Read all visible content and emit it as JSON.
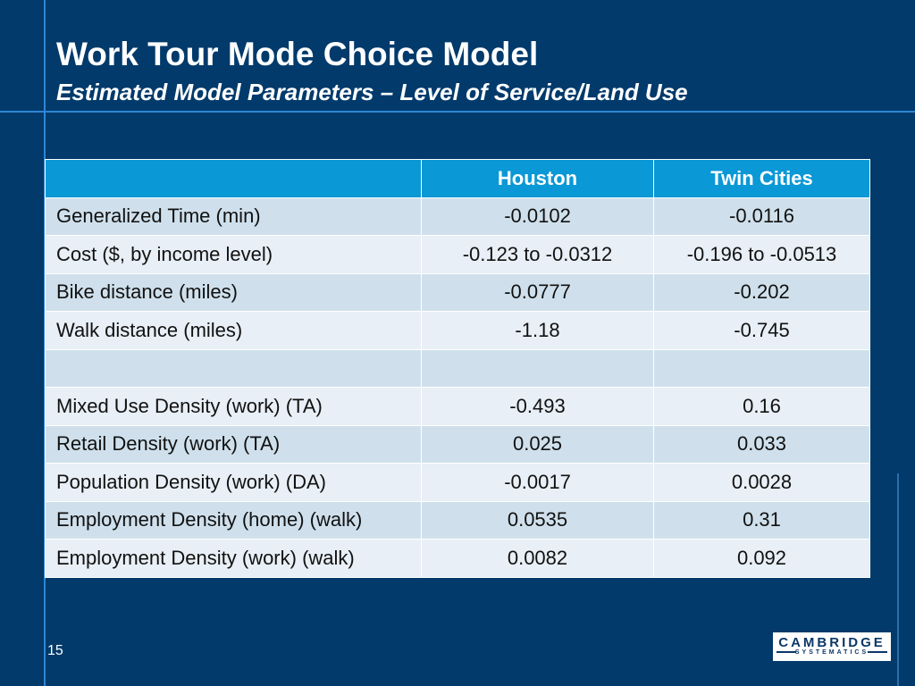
{
  "slide": {
    "title": "Work Tour Mode Choice Model",
    "subtitle": "Estimated Model Parameters – Level of Service/Land Use",
    "page_number": "15"
  },
  "table": {
    "header": [
      "",
      "Houston",
      "Twin Cities"
    ],
    "rows": [
      [
        "Generalized Time (min)",
        "-0.0102",
        "-0.0116"
      ],
      [
        "Cost ($, by income level)",
        "-0.123 to -0.0312",
        "-0.196 to -0.0513"
      ],
      [
        "Bike distance (miles)",
        "-0.0777",
        "-0.202"
      ],
      [
        "Walk distance (miles)",
        "-1.18",
        "-0.745"
      ],
      [
        "",
        "",
        ""
      ],
      [
        "Mixed Use Density (work) (TA)",
        "-0.493",
        "0.16"
      ],
      [
        "Retail Density (work) (TA)",
        "0.025",
        "0.033"
      ],
      [
        "Population Density (work) (DA)",
        "-0.0017",
        "0.0028"
      ],
      [
        "Employment Density (home) (walk)",
        "0.0535",
        "0.31"
      ],
      [
        "Employment Density (work) (walk)",
        "0.0082",
        "0.092"
      ]
    ]
  },
  "logo": {
    "name": "CAMBRIDGE",
    "tagline": "SYSTEMATICS"
  },
  "colors": {
    "background": "#013a6b",
    "accent_line": "#2f86d6",
    "header_fill": "#0a98d6",
    "row_dark": "#cfe0ec",
    "row_light": "#e8eff6"
  }
}
